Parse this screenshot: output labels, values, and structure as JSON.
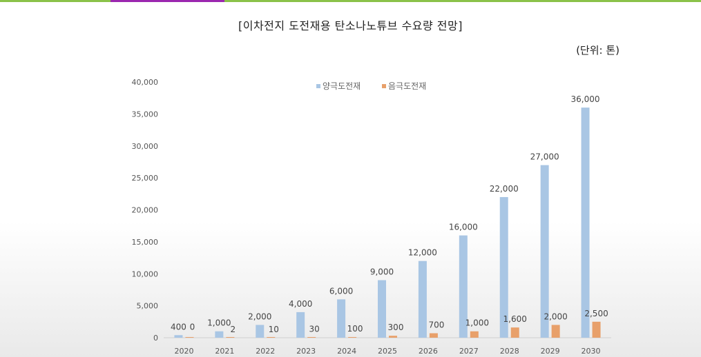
{
  "accent_colors": [
    "#8ac249",
    "#9b27af",
    "#8ac249"
  ],
  "chart_data": {
    "type": "bar",
    "title": "[이차전지 도전재용 탄소나노튜브 수요량 전망]",
    "unit_label": "(단위: 톤)",
    "categories": [
      "2020",
      "2021",
      "2022",
      "2023",
      "2024",
      "2025",
      "2026",
      "2027",
      "2028",
      "2029",
      "2030"
    ],
    "series": [
      {
        "name": "양극도전재",
        "color": "#a9c6e4",
        "values": [
          400,
          1000,
          2000,
          4000,
          6000,
          9000,
          12000,
          16000,
          22000,
          27000,
          36000
        ],
        "labels": [
          "400",
          "1,000",
          "2,000",
          "4,000",
          "6,000",
          "9,000",
          "12,000",
          "16,000",
          "22,000",
          "27,000",
          "36,000"
        ]
      },
      {
        "name": "음극도전재",
        "color": "#e8a06a",
        "values": [
          0,
          2,
          10,
          30,
          100,
          300,
          700,
          1000,
          1600,
          2000,
          2500
        ],
        "labels": [
          "0",
          "2",
          "10",
          "30",
          "100",
          "300",
          "700",
          "1,000",
          "1,600",
          "2,000",
          "2,500"
        ]
      }
    ],
    "yticks": [
      "0",
      "5,000",
      "10,000",
      "15,000",
      "20,000",
      "25,000",
      "30,000",
      "35,000",
      "40,000"
    ],
    "ylim": [
      0,
      40000
    ],
    "legend_position": "top-center",
    "grid": false
  }
}
